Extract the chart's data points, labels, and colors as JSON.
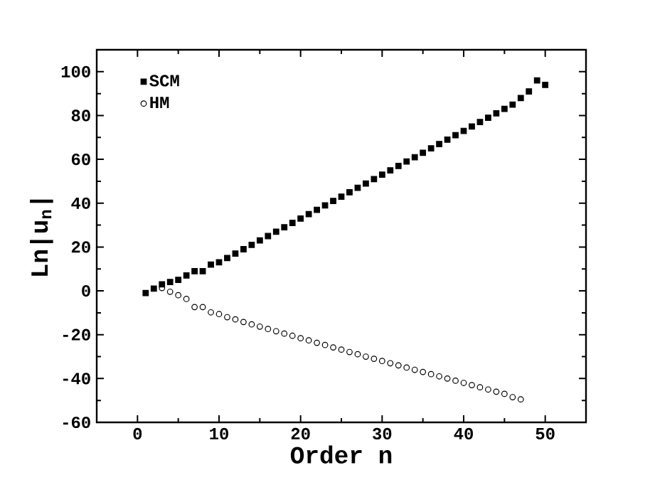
{
  "chart_data": {
    "type": "scatter",
    "xlabel": "Order n",
    "ylabel": "Ln|u$_{n}$|",
    "xlim": [
      -5,
      55
    ],
    "xticks": [
      0,
      10,
      20,
      30,
      40,
      50
    ],
    "ylim": [
      -60,
      110
    ],
    "yticks": [
      -60,
      -40,
      -20,
      0,
      20,
      40,
      60,
      80,
      100
    ],
    "legend": "top left",
    "grid": false,
    "series": [
      {
        "name": "SCM",
        "color": "#000000",
        "marker": "square",
        "x": [
          1,
          2,
          3,
          4,
          5,
          6,
          7,
          8,
          9,
          10,
          11,
          12,
          13,
          14,
          15,
          16,
          17,
          18,
          19,
          20,
          21,
          22,
          23,
          24,
          25,
          26,
          27,
          28,
          29,
          30,
          31,
          32,
          33,
          34,
          35,
          36,
          37,
          38,
          39,
          40,
          41,
          42,
          43,
          44,
          45,
          46,
          47,
          48,
          49,
          50
        ],
        "values": [
          -1,
          1,
          3,
          4,
          5,
          7,
          9,
          9,
          12,
          13,
          15,
          17,
          19,
          21,
          23,
          25,
          27,
          29,
          31,
          33,
          35,
          37,
          39,
          41,
          43,
          45,
          47,
          49,
          51,
          53,
          55,
          57,
          59,
          61,
          63,
          65,
          67,
          69,
          71,
          73,
          75,
          77,
          79,
          81,
          83,
          85,
          88,
          91,
          96,
          94
        ]
      },
      {
        "name": "HM",
        "color": "#000000",
        "marker": "circle",
        "x": [
          3,
          4,
          5,
          6,
          7,
          8,
          9,
          10,
          11,
          12,
          13,
          14,
          15,
          16,
          17,
          18,
          19,
          20,
          21,
          22,
          23,
          24,
          25,
          26,
          27,
          28,
          29,
          30,
          31,
          32,
          33,
          34,
          35,
          36,
          37,
          38,
          39,
          40,
          41,
          42,
          43,
          44,
          45,
          46,
          47
        ],
        "values": [
          1.3,
          -0.4,
          -2,
          -3.7,
          -7.4,
          -7.4,
          -9.8,
          -10.6,
          -12,
          -13,
          -14.2,
          -15.3,
          -16.3,
          -17.4,
          -18.4,
          -19.5,
          -20.5,
          -21.6,
          -22.6,
          -23.7,
          -24.7,
          -25.8,
          -26.8,
          -27.9,
          -28.9,
          -30,
          -31,
          -32,
          -33,
          -34,
          -35,
          -36,
          -37,
          -38,
          -39,
          -40,
          -41,
          -42,
          -43,
          -44,
          -45,
          -46,
          -47,
          -48.5,
          -49.5
        ]
      }
    ]
  }
}
